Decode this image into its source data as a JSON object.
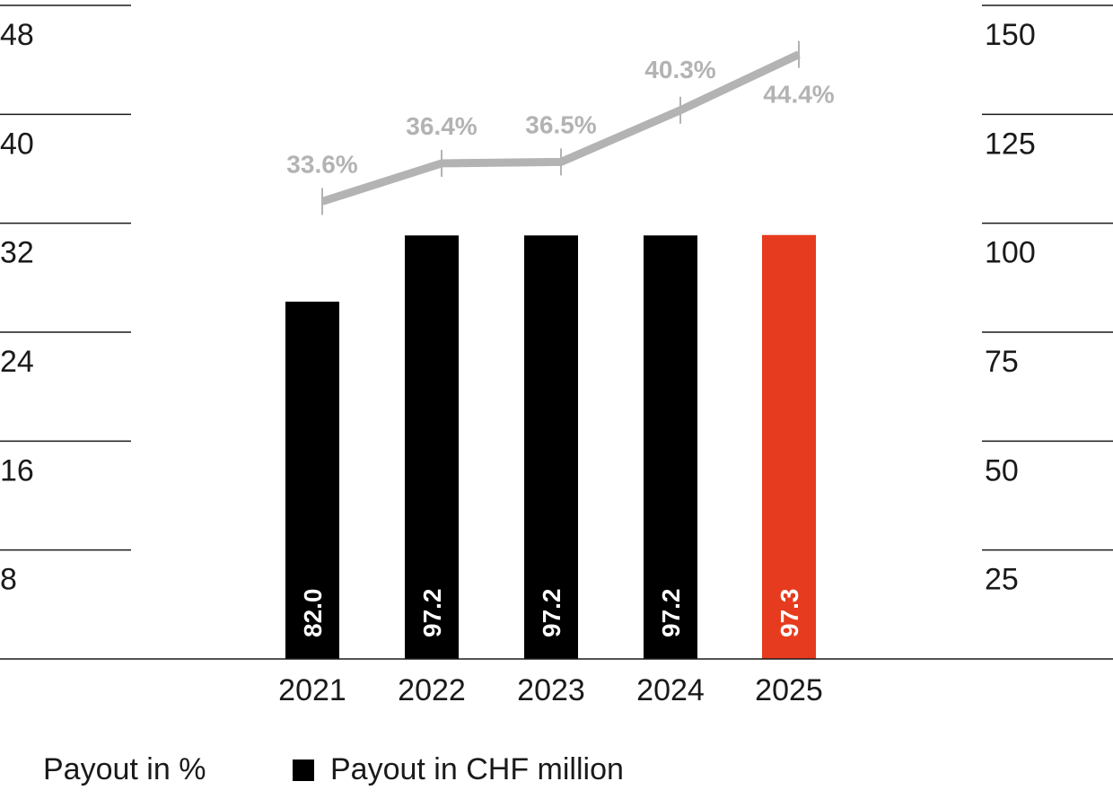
{
  "chart_data": {
    "type": "bar",
    "categories": [
      "2021",
      "2022",
      "2023",
      "2024",
      "2025"
    ],
    "series": [
      {
        "name": "Payout in CHF million",
        "kind": "bar",
        "axis": "right",
        "values": [
          82.0,
          97.2,
          97.2,
          97.2,
          97.3
        ],
        "labels": [
          "82.0",
          "97.2",
          "97.2",
          "97.2",
          "97.3"
        ],
        "colors": [
          "#000000",
          "#000000",
          "#000000",
          "#000000",
          "#e63b1e"
        ]
      },
      {
        "name": "Payout in %",
        "kind": "line",
        "axis": "left",
        "values": [
          33.6,
          36.4,
          36.5,
          40.3,
          44.4
        ],
        "labels": [
          "33.6%",
          "36.4%",
          "36.5%",
          "40.3%",
          "44.4%"
        ],
        "color": "#b3b3b3"
      }
    ],
    "left_axis": {
      "ticks": [
        "48",
        "40",
        "32",
        "24",
        "16",
        "8"
      ],
      "ylim": [
        0,
        48
      ]
    },
    "right_axis": {
      "ticks": [
        "150",
        "125",
        "100",
        "75",
        "50",
        "25"
      ],
      "ylim": [
        0,
        150
      ]
    },
    "grid": true,
    "legend": {
      "position": "bottom-left",
      "items": [
        "Payout in %",
        "Payout in CHF million"
      ]
    }
  }
}
